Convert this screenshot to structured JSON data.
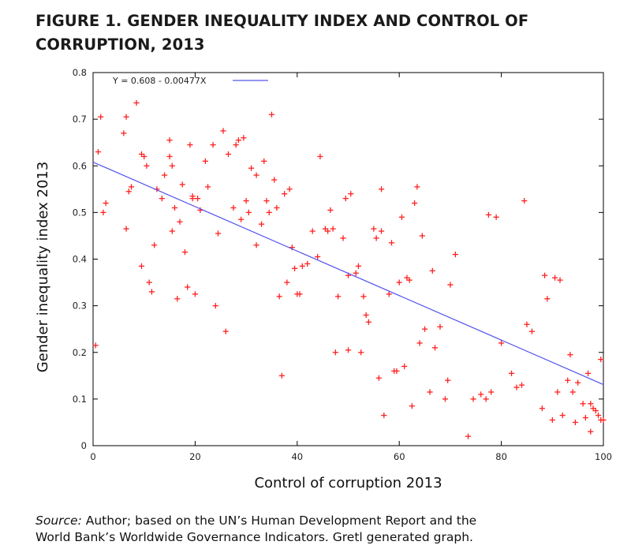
{
  "figure": {
    "title_line1": "FIGURE 1. GENDER INEQUALITY INDEX AND CONTROL OF",
    "title_line2": "CORRUPTION, 2013"
  },
  "source": {
    "label": "Source:",
    "line1": " Author; based on the UN’s Human Development Report and the",
    "line2": "World Bank’s Worldwide Governance Indicators. Gretl generated graph."
  },
  "chart_data": {
    "type": "scatter",
    "xlabel": "Control of corruption 2013",
    "ylabel": "Gender inequality index 2013",
    "xlim": [
      0,
      100
    ],
    "ylim": [
      0,
      0.8
    ],
    "xticks": [
      "0",
      "20",
      "40",
      "60",
      "80",
      "100"
    ],
    "yticks": [
      "0",
      "0.1",
      "0.2",
      "0.3",
      "0.4",
      "0.5",
      "0.6",
      "0.7",
      "0.8"
    ],
    "marker": "+",
    "marker_color": "#ff2020",
    "line_color": "#5555ee",
    "regression": {
      "label": "Y = 0.608 - 0.00477X",
      "intercept": 0.608,
      "slope": -0.00477
    },
    "legend_position": "top-left",
    "points": [
      [
        0.5,
        0.215
      ],
      [
        1,
        0.63
      ],
      [
        1.5,
        0.705
      ],
      [
        2,
        0.5
      ],
      [
        2.5,
        0.52
      ],
      [
        6,
        0.67
      ],
      [
        6.5,
        0.705
      ],
      [
        6.5,
        0.465
      ],
      [
        7,
        0.545
      ],
      [
        7.5,
        0.555
      ],
      [
        8.5,
        0.735
      ],
      [
        9.5,
        0.625
      ],
      [
        9.5,
        0.385
      ],
      [
        10,
        0.62
      ],
      [
        10.5,
        0.6
      ],
      [
        11,
        0.35
      ],
      [
        11.5,
        0.33
      ],
      [
        12,
        0.43
      ],
      [
        12.5,
        0.55
      ],
      [
        13.5,
        0.53
      ],
      [
        14,
        0.58
      ],
      [
        15,
        0.655
      ],
      [
        15,
        0.62
      ],
      [
        15.5,
        0.46
      ],
      [
        15.5,
        0.6
      ],
      [
        16,
        0.51
      ],
      [
        16.5,
        0.315
      ],
      [
        17,
        0.48
      ],
      [
        17.5,
        0.56
      ],
      [
        18,
        0.415
      ],
      [
        18.5,
        0.34
      ],
      [
        19,
        0.645
      ],
      [
        19.5,
        0.535
      ],
      [
        19.5,
        0.53
      ],
      [
        20,
        0.325
      ],
      [
        20.5,
        0.53
      ],
      [
        21,
        0.505
      ],
      [
        22,
        0.61
      ],
      [
        22.5,
        0.555
      ],
      [
        23.5,
        0.645
      ],
      [
        24,
        0.3
      ],
      [
        24.5,
        0.455
      ],
      [
        25.5,
        0.675
      ],
      [
        26,
        0.245
      ],
      [
        26.5,
        0.625
      ],
      [
        27.5,
        0.51
      ],
      [
        28,
        0.645
      ],
      [
        28.5,
        0.655
      ],
      [
        29,
        0.485
      ],
      [
        29.5,
        0.66
      ],
      [
        30,
        0.525
      ],
      [
        30.5,
        0.5
      ],
      [
        31,
        0.595
      ],
      [
        32,
        0.43
      ],
      [
        32,
        0.58
      ],
      [
        33,
        0.475
      ],
      [
        33.5,
        0.61
      ],
      [
        34,
        0.525
      ],
      [
        34.5,
        0.5
      ],
      [
        35,
        0.71
      ],
      [
        35.5,
        0.57
      ],
      [
        36,
        0.51
      ],
      [
        36.5,
        0.32
      ],
      [
        37,
        0.15
      ],
      [
        37.5,
        0.54
      ],
      [
        38,
        0.35
      ],
      [
        38.5,
        0.55
      ],
      [
        39,
        0.425
      ],
      [
        39.5,
        0.38
      ],
      [
        40,
        0.325
      ],
      [
        40.5,
        0.325
      ],
      [
        41,
        0.385
      ],
      [
        42,
        0.39
      ],
      [
        43,
        0.46
      ],
      [
        44,
        0.405
      ],
      [
        44.5,
        0.62
      ],
      [
        45.5,
        0.465
      ],
      [
        46,
        0.46
      ],
      [
        46.5,
        0.505
      ],
      [
        47,
        0.465
      ],
      [
        47.5,
        0.2
      ],
      [
        48,
        0.32
      ],
      [
        49,
        0.445
      ],
      [
        49.5,
        0.53
      ],
      [
        50,
        0.365
      ],
      [
        50,
        0.205
      ],
      [
        50.5,
        0.54
      ],
      [
        51.5,
        0.37
      ],
      [
        52,
        0.385
      ],
      [
        52.5,
        0.2
      ],
      [
        53,
        0.32
      ],
      [
        53.5,
        0.28
      ],
      [
        54,
        0.265
      ],
      [
        55,
        0.465
      ],
      [
        55.5,
        0.445
      ],
      [
        56,
        0.145
      ],
      [
        56.5,
        0.46
      ],
      [
        56.5,
        0.55
      ],
      [
        57,
        0.065
      ],
      [
        58,
        0.325
      ],
      [
        58.5,
        0.435
      ],
      [
        59,
        0.16
      ],
      [
        59.5,
        0.16
      ],
      [
        60,
        0.35
      ],
      [
        60.5,
        0.49
      ],
      [
        61,
        0.17
      ],
      [
        61.5,
        0.36
      ],
      [
        62,
        0.355
      ],
      [
        62.5,
        0.085
      ],
      [
        63,
        0.52
      ],
      [
        63.5,
        0.555
      ],
      [
        64,
        0.22
      ],
      [
        64.5,
        0.45
      ],
      [
        65,
        0.25
      ],
      [
        66,
        0.115
      ],
      [
        66.5,
        0.375
      ],
      [
        67,
        0.21
      ],
      [
        68,
        0.255
      ],
      [
        69,
        0.1
      ],
      [
        69.5,
        0.14
      ],
      [
        70,
        0.345
      ],
      [
        71,
        0.41
      ],
      [
        73.5,
        0.02
      ],
      [
        74.5,
        0.1
      ],
      [
        76,
        0.11
      ],
      [
        77,
        0.1
      ],
      [
        77.5,
        0.495
      ],
      [
        78,
        0.115
      ],
      [
        79,
        0.49
      ],
      [
        80,
        0.22
      ],
      [
        82,
        0.155
      ],
      [
        83,
        0.125
      ],
      [
        84,
        0.13
      ],
      [
        84.5,
        0.525
      ],
      [
        85,
        0.26
      ],
      [
        86,
        0.245
      ],
      [
        88,
        0.08
      ],
      [
        88.5,
        0.365
      ],
      [
        89,
        0.315
      ],
      [
        90,
        0.055
      ],
      [
        90.5,
        0.36
      ],
      [
        91,
        0.115
      ],
      [
        91.5,
        0.355
      ],
      [
        92,
        0.065
      ],
      [
        93,
        0.14
      ],
      [
        93.5,
        0.195
      ],
      [
        94,
        0.115
      ],
      [
        94.5,
        0.05
      ],
      [
        95,
        0.135
      ],
      [
        96,
        0.09
      ],
      [
        96.5,
        0.06
      ],
      [
        97,
        0.155
      ],
      [
        97.5,
        0.03
      ],
      [
        97.5,
        0.09
      ],
      [
        98,
        0.08
      ],
      [
        98.5,
        0.075
      ],
      [
        99,
        0.065
      ],
      [
        99.5,
        0.055
      ],
      [
        99.5,
        0.185
      ],
      [
        100,
        0.055
      ]
    ]
  }
}
